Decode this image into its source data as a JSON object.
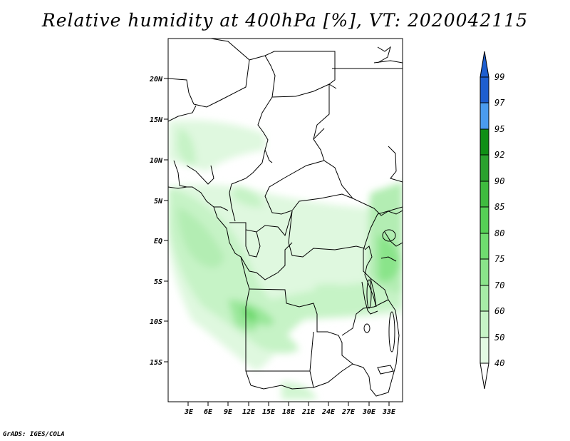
{
  "title": "Relative humidity at 400hPa [%], VT: 2020042115",
  "credit": "GrADS: IGES/COLA",
  "map": {
    "lat_ticks": [
      "20N",
      "15N",
      "10N",
      "5N",
      "EQ",
      "5S",
      "10S",
      "15S"
    ],
    "lon_ticks": [
      "3E",
      "6E",
      "9E",
      "12E",
      "15E",
      "18E",
      "21E",
      "24E",
      "27E",
      "30E",
      "33E"
    ],
    "lon_range": [
      0,
      35
    ],
    "lat_range": [
      -19,
      24
    ]
  },
  "colorbar": {
    "labels": [
      "99",
      "97",
      "95",
      "92",
      "90",
      "85",
      "80",
      "75",
      "70",
      "60",
      "50",
      "40"
    ],
    "colors": [
      "#1e5ecf",
      "#2a78de",
      "#4a9bef",
      "#0f8f15",
      "#2aa22e",
      "#3fbb3f",
      "#56d056",
      "#7be07b",
      "#a2eca2",
      "#c3f4c3",
      "#e0fbe0",
      "#f3fff3"
    ]
  }
}
